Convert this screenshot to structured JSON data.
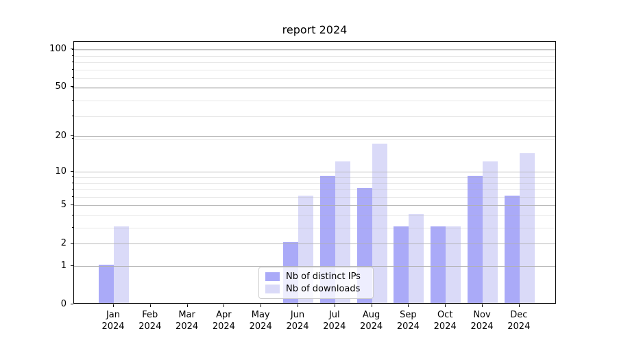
{
  "title": "report 2024",
  "colors": {
    "bar_distinct_ips": "#aaaaf8",
    "bar_downloads": "#dadaf8",
    "grid_major": "#b0b0b0",
    "axis": "#000000",
    "legend_border": "#cccccc"
  },
  "chart_data": {
    "type": "bar",
    "title": "report 2024",
    "categories": [
      "Jan",
      "Feb",
      "Mar",
      "Apr",
      "May",
      "Jun",
      "Jul",
      "Aug",
      "Sep",
      "Oct",
      "Nov",
      "Dec"
    ],
    "category_year": "2024",
    "series": [
      {
        "name": "Nb of distinct IPs",
        "color": "#aaaaf8",
        "values": [
          1,
          0,
          0,
          0,
          0,
          2,
          9,
          7,
          3,
          3,
          9,
          6
        ]
      },
      {
        "name": "Nb of downloads",
        "color": "#dadaf8",
        "values": [
          3,
          0,
          0,
          0,
          0,
          6,
          12,
          17,
          4,
          3,
          12,
          14
        ]
      }
    ],
    "xlabel": "",
    "ylabel": "",
    "yscale": "log1p",
    "yticks": [
      0,
      1,
      2,
      5,
      10,
      20,
      50,
      100
    ],
    "ylim": [
      0,
      115
    ],
    "grid": "major-and-minor, drawn above bars",
    "legend": {
      "position": "lower center",
      "entries": [
        "Nb of distinct IPs",
        "Nb of downloads"
      ]
    }
  }
}
